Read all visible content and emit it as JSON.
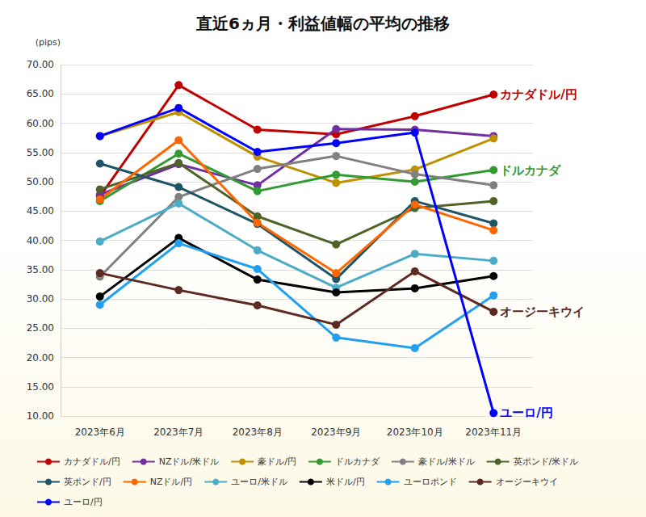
{
  "chart_data": {
    "type": "line",
    "title": "直近6ヵ月・利益値幅の平均の推移",
    "y_label": "(pips)",
    "categories": [
      "2023年6月",
      "2023年7月",
      "2023年8月",
      "2023年9月",
      "2023年10月",
      "2023年11月"
    ],
    "series": [
      {
        "name": "カナダドル/円",
        "color": "#c00000",
        "values": [
          47.5,
          66.5,
          58.9,
          58.1,
          61.2,
          64.9
        ]
      },
      {
        "name": "NZドル/米ドル",
        "color": "#7030a0",
        "values": [
          47.8,
          53.0,
          49.4,
          59.0,
          58.9,
          57.8
        ]
      },
      {
        "name": "豪ドル/円",
        "color": "#bf9000",
        "values": [
          57.8,
          61.9,
          54.3,
          49.8,
          52.1,
          57.4
        ]
      },
      {
        "name": "ドルカナダ",
        "color": "#339933",
        "values": [
          46.7,
          54.8,
          48.4,
          51.2,
          50.0,
          52.0
        ]
      },
      {
        "name": "豪ドル/米ドル",
        "color": "#808080",
        "values": [
          33.8,
          47.4,
          52.2,
          54.4,
          51.3,
          49.4
        ]
      },
      {
        "name": "英ポンド/米ドル",
        "color": "#4f6228",
        "values": [
          48.7,
          53.2,
          44.1,
          39.3,
          45.5,
          46.7
        ]
      },
      {
        "name": "英ポンド/円",
        "color": "#1f5566",
        "values": [
          53.1,
          49.1,
          42.8,
          33.4,
          46.7,
          42.9
        ]
      },
      {
        "name": "NZドル/円",
        "color": "#ff6600",
        "values": [
          47.0,
          57.1,
          43.0,
          34.4,
          46.1,
          41.7
        ]
      },
      {
        "name": "ユーロ/米ドル",
        "color": "#4bacc6",
        "values": [
          39.8,
          46.3,
          38.3,
          31.9,
          37.7,
          36.5
        ]
      },
      {
        "name": "米ドル/円",
        "color": "#000000",
        "values": [
          30.4,
          40.4,
          33.3,
          31.1,
          31.8,
          33.9
        ]
      },
      {
        "name": "ユーロポンド",
        "color": "#1fa0f0",
        "values": [
          29.0,
          39.5,
          35.1,
          23.4,
          21.6,
          30.6
        ]
      },
      {
        "name": "オージーキウイ",
        "color": "#5c2a20",
        "values": [
          34.4,
          31.5,
          28.9,
          25.6,
          34.7,
          27.8
        ]
      },
      {
        "name": "ユーロ/円",
        "color": "#0000ff",
        "values": [
          57.8,
          62.6,
          55.1,
          56.6,
          58.4,
          10.5
        ]
      }
    ],
    "annotations": [
      "カナダドル/円",
      "ドルカナダ",
      "オージーキウイ",
      "ユーロ/円"
    ],
    "ylim": [
      10,
      70
    ],
    "yticks": [
      {
        "value": 10,
        "label": "10.00"
      },
      {
        "value": 15,
        "label": "15.00"
      },
      {
        "value": 20,
        "label": "20.00"
      },
      {
        "value": 25,
        "label": "25.00"
      },
      {
        "value": 30,
        "label": "30.00"
      },
      {
        "value": 35,
        "label": "35.00"
      },
      {
        "value": 40,
        "label": "40.00"
      },
      {
        "value": 45,
        "label": "45.00"
      },
      {
        "value": 50,
        "label": "50.00"
      },
      {
        "value": 55,
        "label": "55.00"
      },
      {
        "value": 60,
        "label": "60.00"
      },
      {
        "value": 65,
        "label": "65.00"
      },
      {
        "value": 70,
        "label": "70.00"
      }
    ],
    "grid": true,
    "legend": "bottom",
    "marker": "circle"
  }
}
